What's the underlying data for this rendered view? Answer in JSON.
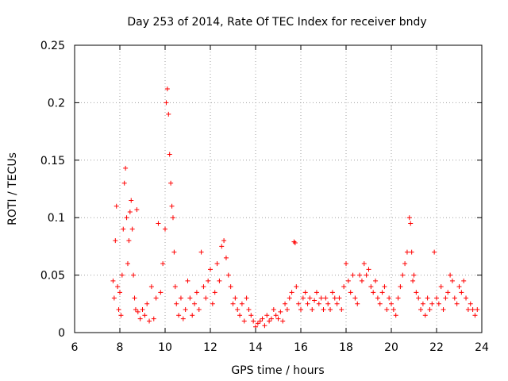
{
  "chart_data": {
    "type": "scatter",
    "title": "Day 253 of 2014, Rate Of TEC Index for receiver bndy",
    "xlabel": "GPS time / hours",
    "ylabel": "ROTI / TECUs",
    "xlim": [
      6,
      24
    ],
    "ylim": [
      0,
      0.25
    ],
    "grid": true,
    "marker": "+",
    "color": "#ff0000",
    "x_ticks": [
      "6",
      "8",
      "10",
      "12",
      "14",
      "16",
      "18",
      "20",
      "22",
      "24"
    ],
    "y_ticks": [
      "0",
      "0.05",
      "0.1",
      "0.15",
      "0.2",
      "0.25"
    ],
    "series": [
      {
        "name": "ROTI",
        "x": [
          7.7,
          7.75,
          7.8,
          7.85,
          7.9,
          7.95,
          8.0,
          8.05,
          8.1,
          8.15,
          8.2,
          8.25,
          8.3,
          8.35,
          8.4,
          8.45,
          8.5,
          8.55,
          8.6,
          8.65,
          8.7,
          8.75,
          8.8,
          8.9,
          9.0,
          9.1,
          9.2,
          9.3,
          9.4,
          9.5,
          9.6,
          9.7,
          9.8,
          9.9,
          10.0,
          10.05,
          10.1,
          10.15,
          10.2,
          10.25,
          10.3,
          10.35,
          10.4,
          10.45,
          10.5,
          10.6,
          10.7,
          10.8,
          10.9,
          11.0,
          11.1,
          11.2,
          11.3,
          11.4,
          11.5,
          11.6,
          11.7,
          11.8,
          11.9,
          12.0,
          12.1,
          12.2,
          12.3,
          12.4,
          12.5,
          12.6,
          12.7,
          12.8,
          12.9,
          13.0,
          13.1,
          13.2,
          13.3,
          13.4,
          13.5,
          13.6,
          13.7,
          13.8,
          13.9,
          14.0,
          14.1,
          14.2,
          14.3,
          14.4,
          14.5,
          14.6,
          14.7,
          14.8,
          14.9,
          15.0,
          15.1,
          15.2,
          15.3,
          15.4,
          15.5,
          15.6,
          15.7,
          15.75,
          15.8,
          15.9,
          16.0,
          16.1,
          16.2,
          16.3,
          16.4,
          16.5,
          16.6,
          16.7,
          16.8,
          16.9,
          17.0,
          17.1,
          17.2,
          17.3,
          17.4,
          17.5,
          17.6,
          17.7,
          17.8,
          17.9,
          18.0,
          18.1,
          18.2,
          18.3,
          18.4,
          18.5,
          18.6,
          18.7,
          18.8,
          18.9,
          19.0,
          19.1,
          19.2,
          19.3,
          19.4,
          19.5,
          19.6,
          19.7,
          19.8,
          19.9,
          20.0,
          20.1,
          20.2,
          20.3,
          20.4,
          20.5,
          20.6,
          20.7,
          20.8,
          20.85,
          20.9,
          20.95,
          21.0,
          21.1,
          21.2,
          21.3,
          21.4,
          21.5,
          21.6,
          21.7,
          21.8,
          21.9,
          22.0,
          22.1,
          22.2,
          22.3,
          22.4,
          22.5,
          22.6,
          22.7,
          22.8,
          22.9,
          23.0,
          23.1,
          23.2,
          23.3,
          23.4,
          23.5,
          23.6,
          23.7,
          23.8
        ],
        "y": [
          0.045,
          0.03,
          0.08,
          0.11,
          0.04,
          0.02,
          0.035,
          0.015,
          0.05,
          0.09,
          0.13,
          0.143,
          0.1,
          0.06,
          0.08,
          0.105,
          0.115,
          0.09,
          0.05,
          0.03,
          0.02,
          0.107,
          0.018,
          0.012,
          0.02,
          0.015,
          0.025,
          0.01,
          0.04,
          0.012,
          0.03,
          0.095,
          0.035,
          0.06,
          0.09,
          0.2,
          0.212,
          0.19,
          0.155,
          0.13,
          0.11,
          0.1,
          0.07,
          0.04,
          0.025,
          0.015,
          0.03,
          0.012,
          0.02,
          0.045,
          0.03,
          0.015,
          0.025,
          0.035,
          0.02,
          0.07,
          0.04,
          0.03,
          0.045,
          0.055,
          0.025,
          0.035,
          0.06,
          0.045,
          0.075,
          0.08,
          0.065,
          0.05,
          0.04,
          0.025,
          0.03,
          0.02,
          0.015,
          0.025,
          0.01,
          0.03,
          0.02,
          0.015,
          0.01,
          0.005,
          0.008,
          0.01,
          0.012,
          0.006,
          0.015,
          0.01,
          0.012,
          0.02,
          0.015,
          0.012,
          0.018,
          0.01,
          0.025,
          0.02,
          0.03,
          0.035,
          0.079,
          0.078,
          0.04,
          0.025,
          0.02,
          0.03,
          0.035,
          0.025,
          0.03,
          0.02,
          0.028,
          0.035,
          0.025,
          0.03,
          0.02,
          0.03,
          0.025,
          0.02,
          0.035,
          0.03,
          0.025,
          0.03,
          0.02,
          0.04,
          0.06,
          0.045,
          0.035,
          0.05,
          0.03,
          0.025,
          0.05,
          0.045,
          0.06,
          0.05,
          0.055,
          0.04,
          0.035,
          0.045,
          0.03,
          0.025,
          0.035,
          0.04,
          0.02,
          0.03,
          0.025,
          0.02,
          0.015,
          0.03,
          0.04,
          0.05,
          0.06,
          0.07,
          0.1,
          0.095,
          0.07,
          0.045,
          0.05,
          0.035,
          0.03,
          0.02,
          0.025,
          0.015,
          0.03,
          0.02,
          0.025,
          0.07,
          0.03,
          0.025,
          0.04,
          0.02,
          0.03,
          0.035,
          0.05,
          0.045,
          0.03,
          0.025,
          0.04,
          0.035,
          0.045,
          0.03,
          0.02,
          0.025,
          0.02,
          0.015,
          0.02
        ]
      }
    ]
  }
}
